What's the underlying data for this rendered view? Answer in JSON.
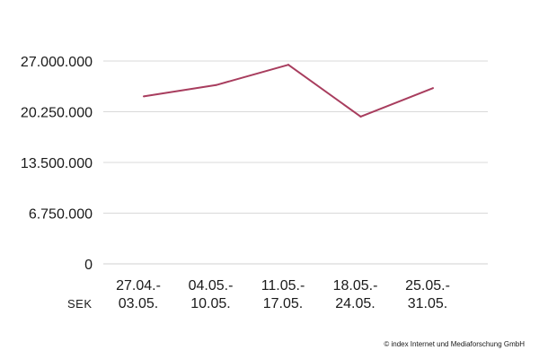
{
  "chart_data": {
    "type": "line",
    "title": "",
    "xlabel": "",
    "ylabel": "",
    "unit_label": "SEK",
    "categories": [
      [
        "27.04.-",
        "03.05."
      ],
      [
        "04.05.-",
        "10.05."
      ],
      [
        "11.05.-",
        "17.05."
      ],
      [
        "18.05.-",
        "24.05."
      ],
      [
        "25.05.-",
        "31.05."
      ]
    ],
    "series": [
      {
        "name": "SEK",
        "color": "#a83d5e",
        "values": [
          22300000,
          23800000,
          26500000,
          19600000,
          23400000
        ]
      }
    ],
    "ylim": [
      0,
      27000000
    ],
    "yticks": [
      0,
      6750000,
      13500000,
      20250000,
      27000000
    ],
    "ytick_labels": [
      "0",
      "6.750.000",
      "13.500.000",
      "20.250.000",
      "27.000.000"
    ],
    "grid": true,
    "grid_color": "#d9d9d9",
    "copyright": "© index Internet und Mediaforschung GmbH"
  }
}
